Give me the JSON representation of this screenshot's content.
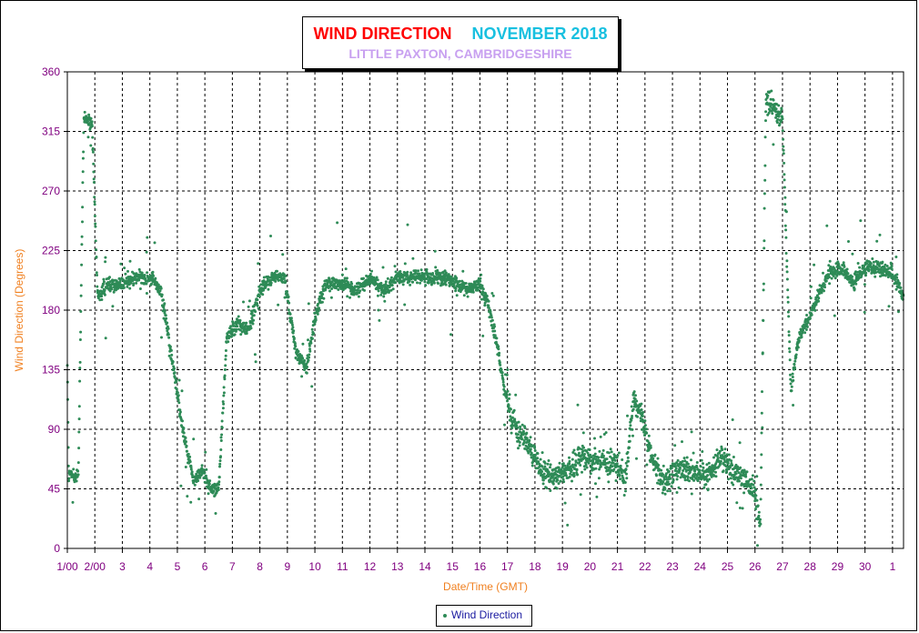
{
  "chart_data": {
    "type": "scatter",
    "title": "WIND DIRECTION",
    "title_period": "NOVEMBER 2018",
    "subtitle": "LITTLE PAXTON, CAMBRIDGESHIRE",
    "xlabel": "Date/Time (GMT)",
    "ylabel": "Wind Direction (Degrees)",
    "ylim": [
      0,
      360
    ],
    "xlim": [
      0,
      30.4
    ],
    "yticks": [
      0,
      45,
      90,
      135,
      180,
      225,
      270,
      315,
      360
    ],
    "xtick_labels": [
      "1/00",
      "2/00",
      "3",
      "4",
      "5",
      "6",
      "7",
      "8",
      "9",
      "10",
      "11",
      "12",
      "13",
      "14",
      "15",
      "16",
      "17",
      "18",
      "19",
      "20",
      "21",
      "22",
      "23",
      "24",
      "25",
      "26",
      "27",
      "28",
      "29",
      "30",
      "1"
    ],
    "grid": true,
    "legend": "bottom-center",
    "series": [
      {
        "name": "Wind Direction",
        "color": "#2e8b57",
        "daily_profile": [
          {
            "x": 0.0,
            "y": 140
          },
          {
            "x": 0.05,
            "y": 55
          },
          {
            "x": 0.4,
            "y": 55
          },
          {
            "x": 0.6,
            "y": 325
          },
          {
            "x": 0.9,
            "y": 320
          },
          {
            "x": 1.1,
            "y": 190
          },
          {
            "x": 1.5,
            "y": 200
          },
          {
            "x": 2.0,
            "y": 200
          },
          {
            "x": 2.5,
            "y": 205
          },
          {
            "x": 3.0,
            "y": 205
          },
          {
            "x": 3.4,
            "y": 195
          },
          {
            "x": 3.6,
            "y": 170
          },
          {
            "x": 3.9,
            "y": 130
          },
          {
            "x": 4.2,
            "y": 90
          },
          {
            "x": 4.4,
            "y": 70
          },
          {
            "x": 4.6,
            "y": 50
          },
          {
            "x": 4.9,
            "y": 60
          },
          {
            "x": 5.2,
            "y": 45
          },
          {
            "x": 5.5,
            "y": 45
          },
          {
            "x": 5.8,
            "y": 160
          },
          {
            "x": 6.2,
            "y": 170
          },
          {
            "x": 6.6,
            "y": 165
          },
          {
            "x": 7.0,
            "y": 195
          },
          {
            "x": 7.5,
            "y": 205
          },
          {
            "x": 7.9,
            "y": 205
          },
          {
            "x": 8.3,
            "y": 150
          },
          {
            "x": 8.7,
            "y": 135
          },
          {
            "x": 9.0,
            "y": 175
          },
          {
            "x": 9.4,
            "y": 200
          },
          {
            "x": 10.0,
            "y": 200
          },
          {
            "x": 10.5,
            "y": 195
          },
          {
            "x": 11.0,
            "y": 205
          },
          {
            "x": 11.5,
            "y": 195
          },
          {
            "x": 12.0,
            "y": 205
          },
          {
            "x": 13.0,
            "y": 205
          },
          {
            "x": 14.0,
            "y": 203
          },
          {
            "x": 14.5,
            "y": 195
          },
          {
            "x": 15.0,
            "y": 200
          },
          {
            "x": 15.3,
            "y": 185
          },
          {
            "x": 15.6,
            "y": 155
          },
          {
            "x": 15.9,
            "y": 120
          },
          {
            "x": 16.3,
            "y": 90
          },
          {
            "x": 16.7,
            "y": 80
          },
          {
            "x": 17.0,
            "y": 70
          },
          {
            "x": 17.3,
            "y": 55
          },
          {
            "x": 17.8,
            "y": 55
          },
          {
            "x": 18.3,
            "y": 60
          },
          {
            "x": 18.8,
            "y": 70
          },
          {
            "x": 19.5,
            "y": 65
          },
          {
            "x": 20.0,
            "y": 62
          },
          {
            "x": 20.3,
            "y": 55
          },
          {
            "x": 20.6,
            "y": 115
          },
          {
            "x": 20.9,
            "y": 100
          },
          {
            "x": 21.3,
            "y": 65
          },
          {
            "x": 21.7,
            "y": 50
          },
          {
            "x": 22.3,
            "y": 60
          },
          {
            "x": 22.8,
            "y": 55
          },
          {
            "x": 23.3,
            "y": 55
          },
          {
            "x": 23.8,
            "y": 70
          },
          {
            "x": 24.2,
            "y": 58
          },
          {
            "x": 24.7,
            "y": 52
          },
          {
            "x": 25.0,
            "y": 40
          },
          {
            "x": 25.2,
            "y": 20
          },
          {
            "x": 25.4,
            "y": 340
          },
          {
            "x": 25.8,
            "y": 330
          },
          {
            "x": 26.0,
            "y": 325
          },
          {
            "x": 26.3,
            "y": 120
          },
          {
            "x": 26.6,
            "y": 160
          },
          {
            "x": 27.0,
            "y": 175
          },
          {
            "x": 27.4,
            "y": 195
          },
          {
            "x": 27.7,
            "y": 210
          },
          {
            "x": 28.2,
            "y": 210
          },
          {
            "x": 28.6,
            "y": 200
          },
          {
            "x": 29.0,
            "y": 213
          },
          {
            "x": 29.5,
            "y": 212
          },
          {
            "x": 30.0,
            "y": 208
          },
          {
            "x": 30.4,
            "y": 190
          }
        ]
      }
    ]
  }
}
